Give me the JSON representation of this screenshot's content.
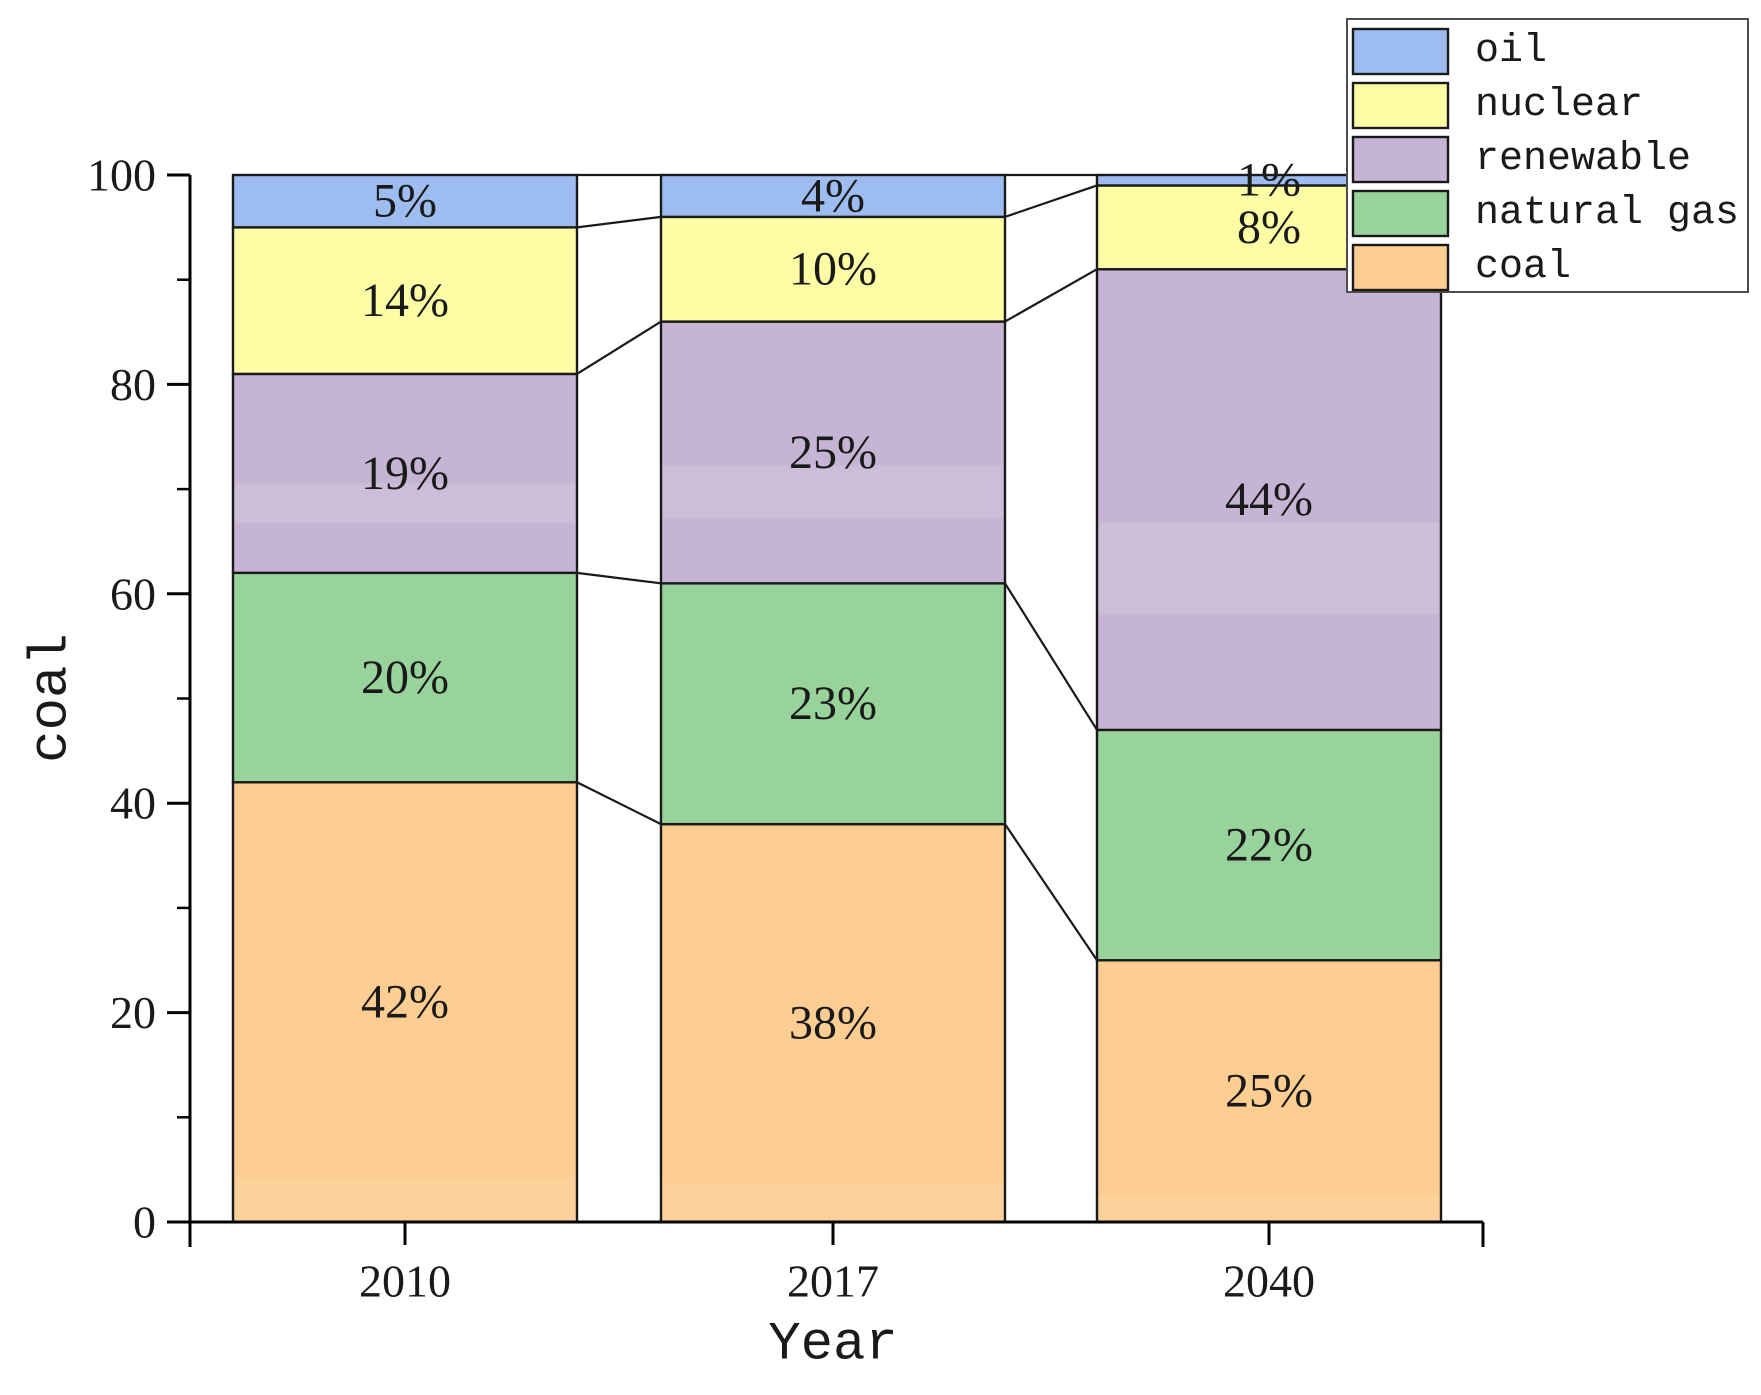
{
  "chart_data": {
    "type": "bar",
    "stacked": true,
    "title": "",
    "xlabel": "Year",
    "ylabel": "coal",
    "categories": [
      "2010",
      "2017",
      "2040"
    ],
    "series": [
      {
        "name": "coal",
        "color": "#fecd92",
        "values": [
          42,
          38,
          25
        ],
        "labels": [
          "42%",
          "38%",
          "25%"
        ]
      },
      {
        "name": "natural gas",
        "color": "#99d39c",
        "values": [
          20,
          23,
          22
        ],
        "labels": [
          "20%",
          "23%",
          "22%"
        ]
      },
      {
        "name": "renewable",
        "color": "#c5b4d3",
        "values": [
          19,
          25,
          44
        ],
        "labels": [
          "19%",
          "25%",
          "44%"
        ]
      },
      {
        "name": "nuclear",
        "color": "#fdfda5",
        "values": [
          14,
          10,
          8
        ],
        "labels": [
          "14%",
          "10%",
          "8%"
        ]
      },
      {
        "name": "oil",
        "color": "#9dbdf1",
        "values": [
          5,
          4,
          1
        ],
        "labels": [
          "5%",
          "4%",
          "1%"
        ]
      }
    ],
    "ylim": [
      0,
      100
    ],
    "yticks": [
      0,
      20,
      40,
      60,
      80,
      100
    ],
    "ytick_labels": [
      "0",
      "20",
      "40",
      "60",
      "80",
      "100"
    ],
    "minor_yticks": [
      10,
      30,
      50,
      70,
      90
    ],
    "grid": false,
    "connectors": true,
    "legend": {
      "position": "top-right",
      "items": [
        "oil",
        "nuclear",
        "renewable",
        "natural gas",
        "coal"
      ]
    }
  },
  "colors": {
    "background": "#ffffff",
    "segment_border": "#1a1a1a",
    "connector": "#1a1a1a",
    "axis": "#000000",
    "text": "#1a1a1a",
    "legend_border": "#4d4d4d",
    "legend_background": "#ffffff"
  }
}
